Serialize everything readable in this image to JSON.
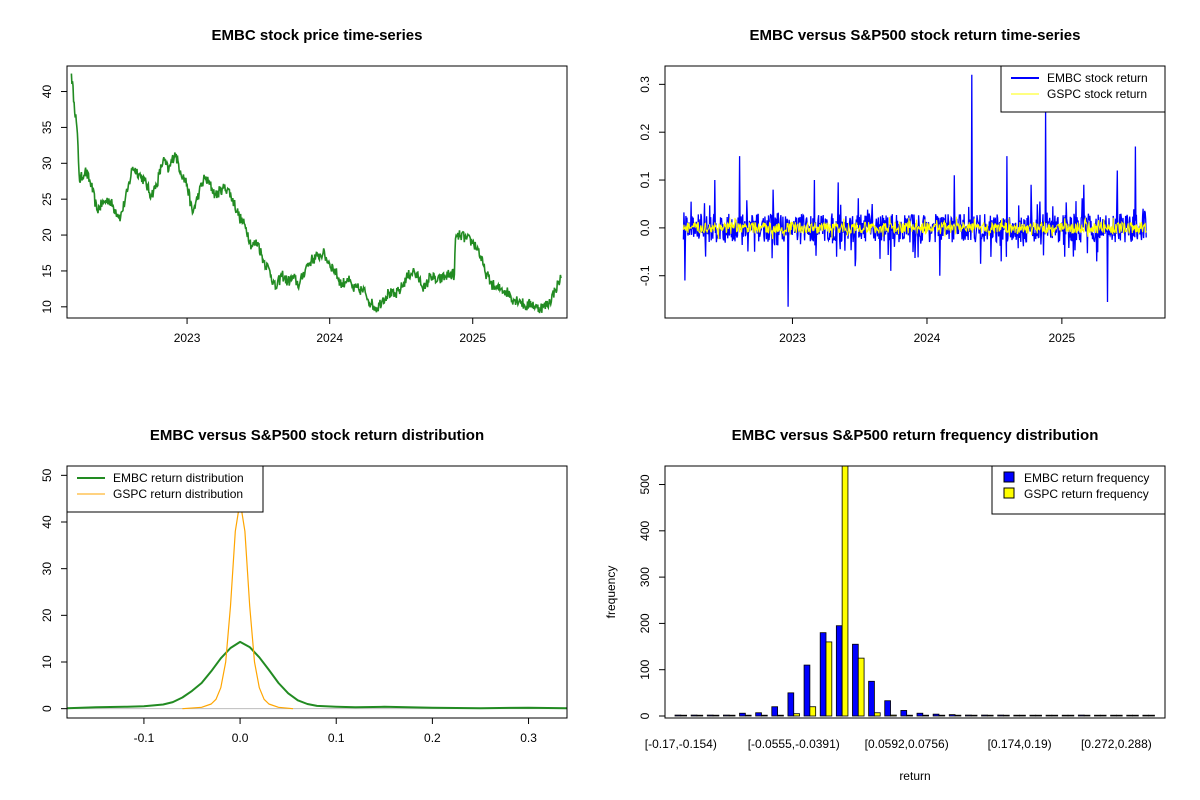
{
  "chart_data": [
    {
      "type": "line",
      "title": "EMBC stock price time-series",
      "xlabel": "",
      "ylabel": "",
      "x_ticks": [
        "2023",
        "2024",
        "2025"
      ],
      "x_tick_values": [
        "2023-01-01",
        "2024-01-01",
        "2025-01-01"
      ],
      "xlim": [
        "2022-03-10",
        "2025-08-20"
      ],
      "y_ticks": [
        10,
        15,
        20,
        25,
        30,
        35,
        40
      ],
      "ylim": [
        9,
        43
      ],
      "grid": false,
      "series": [
        {
          "color": "#228b22",
          "points": [
            [
              "2022-03-11",
              42.5
            ],
            [
              "2022-03-18",
              38.5
            ],
            [
              "2022-03-25",
              35.0
            ],
            [
              "2022-04-01",
              27.5
            ],
            [
              "2022-04-15",
              29.0
            ],
            [
              "2022-05-01",
              27.0
            ],
            [
              "2022-05-15",
              23.5
            ],
            [
              "2022-06-01",
              24.5
            ],
            [
              "2022-06-15",
              25.0
            ],
            [
              "2022-07-01",
              23.5
            ],
            [
              "2022-07-15",
              22.5
            ],
            [
              "2022-08-01",
              26.0
            ],
            [
              "2022-08-15",
              29.5
            ],
            [
              "2022-09-01",
              28.5
            ],
            [
              "2022-09-15",
              27.5
            ],
            [
              "2022-10-01",
              25.5
            ],
            [
              "2022-10-15",
              27.0
            ],
            [
              "2022-11-01",
              30.5
            ],
            [
              "2022-11-15",
              29.0
            ],
            [
              "2022-12-01",
              31.5
            ],
            [
              "2022-12-15",
              29.0
            ],
            [
              "2023-01-01",
              27.0
            ],
            [
              "2023-01-15",
              23.0
            ],
            [
              "2023-02-01",
              26.0
            ],
            [
              "2023-02-15",
              28.0
            ],
            [
              "2023-03-01",
              27.0
            ],
            [
              "2023-03-15",
              25.5
            ],
            [
              "2023-04-01",
              26.5
            ],
            [
              "2023-04-15",
              26.5
            ],
            [
              "2023-05-01",
              24.5
            ],
            [
              "2023-05-15",
              22.5
            ],
            [
              "2023-06-01",
              21.0
            ],
            [
              "2023-06-15",
              18.5
            ],
            [
              "2023-07-01",
              19.0
            ],
            [
              "2023-07-15",
              16.5
            ],
            [
              "2023-08-01",
              15.0
            ],
            [
              "2023-08-15",
              12.5
            ],
            [
              "2023-09-01",
              14.5
            ],
            [
              "2023-09-15",
              13.5
            ],
            [
              "2023-10-01",
              14.0
            ],
            [
              "2023-10-15",
              13.0
            ],
            [
              "2023-11-01",
              15.5
            ],
            [
              "2023-11-15",
              16.5
            ],
            [
              "2023-12-01",
              17.0
            ],
            [
              "2023-12-15",
              17.5
            ],
            [
              "2024-01-01",
              16.0
            ],
            [
              "2024-01-15",
              15.0
            ],
            [
              "2024-02-01",
              13.0
            ],
            [
              "2024-02-15",
              14.0
            ],
            [
              "2024-03-01",
              12.5
            ],
            [
              "2024-03-15",
              12.5
            ],
            [
              "2024-04-01",
              12.0
            ],
            [
              "2024-04-15",
              10.5
            ],
            [
              "2024-05-01",
              9.8
            ],
            [
              "2024-05-15",
              11.0
            ],
            [
              "2024-06-01",
              12.0
            ],
            [
              "2024-06-15",
              11.5
            ],
            [
              "2024-07-01",
              12.5
            ],
            [
              "2024-07-15",
              14.0
            ],
            [
              "2024-08-01",
              15.0
            ],
            [
              "2024-08-15",
              14.0
            ],
            [
              "2024-09-01",
              12.5
            ],
            [
              "2024-09-15",
              14.5
            ],
            [
              "2024-10-01",
              13.5
            ],
            [
              "2024-10-15",
              14.0
            ],
            [
              "2024-11-01",
              14.5
            ],
            [
              "2024-11-15",
              14.5
            ],
            [
              "2024-11-18",
              19.5
            ],
            [
              "2024-12-01",
              20.0
            ],
            [
              "2024-12-15",
              19.5
            ],
            [
              "2025-01-01",
              19.0
            ],
            [
              "2025-01-15",
              18.0
            ],
            [
              "2025-02-01",
              15.0
            ],
            [
              "2025-02-15",
              13.5
            ],
            [
              "2025-03-01",
              12.5
            ],
            [
              "2025-03-15",
              12.5
            ],
            [
              "2025-04-01",
              12.0
            ],
            [
              "2025-04-15",
              11.0
            ],
            [
              "2025-05-01",
              11.0
            ],
            [
              "2025-05-15",
              10.0
            ],
            [
              "2025-06-01",
              10.5
            ],
            [
              "2025-06-15",
              9.8
            ],
            [
              "2025-07-01",
              10.0
            ],
            [
              "2025-07-15",
              10.5
            ],
            [
              "2025-08-01",
              12.5
            ],
            [
              "2025-08-15",
              14.0
            ]
          ]
        }
      ]
    },
    {
      "type": "line",
      "title": "EMBC versus S&P500 stock return time-series",
      "xlabel": "",
      "ylabel": "",
      "x_ticks": [
        "2023",
        "2024",
        "2025"
      ],
      "x_tick_values": [
        "2023-01-01",
        "2024-01-01",
        "2025-01-01"
      ],
      "xlim": [
        "2022-03-10",
        "2025-08-20"
      ],
      "y_ticks": [
        -0.1,
        0.0,
        0.1,
        0.2,
        0.3
      ],
      "y_tick_labels": [
        "-0.1",
        "0.0",
        "0.1",
        "0.2",
        "0.3"
      ],
      "ylim": [
        -0.18,
        0.33
      ],
      "legend": "top-right",
      "grid": false,
      "series": [
        {
          "name": "EMBC stock return",
          "color": "#0000ff",
          "amplitude": 0.03,
          "spikes": [
            [
              "2022-03-15",
              -0.11
            ],
            [
              "2022-04-01",
              0.055
            ],
            [
              "2022-05-10",
              -0.06
            ],
            [
              "2022-06-05",
              0.1
            ],
            [
              "2022-08-10",
              0.15
            ],
            [
              "2022-09-20",
              -0.05
            ],
            [
              "2022-11-10",
              0.08
            ],
            [
              "2022-12-20",
              -0.165
            ],
            [
              "2023-03-01",
              0.1
            ],
            [
              "2023-05-05",
              0.095
            ],
            [
              "2023-06-20",
              -0.08
            ],
            [
              "2023-08-05",
              0.05
            ],
            [
              "2023-09-25",
              -0.09
            ],
            [
              "2024-02-05",
              -0.1
            ],
            [
              "2024-03-15",
              0.11
            ],
            [
              "2024-05-01",
              0.32
            ],
            [
              "2024-05-25",
              -0.075
            ],
            [
              "2024-07-20",
              -0.07
            ],
            [
              "2024-08-05",
              0.15
            ],
            [
              "2024-10-10",
              0.09
            ],
            [
              "2024-11-18",
              0.245
            ],
            [
              "2025-02-01",
              -0.06
            ],
            [
              "2025-03-01",
              0.09
            ],
            [
              "2025-04-05",
              -0.07
            ],
            [
              "2025-05-05",
              -0.155
            ],
            [
              "2025-06-01",
              0.12
            ],
            [
              "2025-07-20",
              0.17
            ],
            [
              "2025-08-10",
              0.04
            ]
          ]
        },
        {
          "name": "GSPC stock return",
          "color": "#ffff00",
          "amplitude": 0.012
        }
      ]
    },
    {
      "type": "line",
      "title": "EMBC versus S&P500 stock return distribution",
      "xlabel": "",
      "ylabel": "",
      "x_ticks": [
        -0.1,
        0.0,
        0.1,
        0.2,
        0.3
      ],
      "x_tick_labels": [
        "-0.1",
        "0.0",
        "0.1",
        "0.2",
        "0.3"
      ],
      "y_ticks": [
        0,
        10,
        20,
        30,
        40,
        50
      ],
      "xlim": [
        -0.18,
        0.34
      ],
      "ylim": [
        -2,
        52
      ],
      "legend": "top-left",
      "grid": false,
      "series": [
        {
          "name": "EMBC return distribution",
          "color": "#228b22",
          "x": [
            -0.18,
            -0.15,
            -0.12,
            -0.1,
            -0.08,
            -0.07,
            -0.06,
            -0.05,
            -0.04,
            -0.03,
            -0.02,
            -0.01,
            0.0,
            0.01,
            0.02,
            0.03,
            0.04,
            0.05,
            0.06,
            0.07,
            0.08,
            0.1,
            0.12,
            0.15,
            0.2,
            0.25,
            0.3,
            0.34
          ],
          "y": [
            0.1,
            0.3,
            0.4,
            0.5,
            0.9,
            1.4,
            2.4,
            3.8,
            5.5,
            8.0,
            10.8,
            13.0,
            14.3,
            13.2,
            11.0,
            8.3,
            5.5,
            3.3,
            1.8,
            1.0,
            0.6,
            0.4,
            0.3,
            0.4,
            0.2,
            0.1,
            0.2,
            0.1
          ]
        },
        {
          "name": "GSPC return distribution",
          "color": "#ffa500",
          "x": [
            -0.06,
            -0.04,
            -0.03,
            -0.025,
            -0.02,
            -0.015,
            -0.01,
            -0.005,
            0.0,
            0.005,
            0.01,
            0.015,
            0.02,
            0.025,
            0.03,
            0.04,
            0.055
          ],
          "y": [
            0,
            0.3,
            1.0,
            2.0,
            4.5,
            10.0,
            22.0,
            38.0,
            44.5,
            38.0,
            22.0,
            10.0,
            4.5,
            2.0,
            1.0,
            0.3,
            0
          ]
        }
      ]
    },
    {
      "type": "bar",
      "title": "EMBC versus S&P500 return frequency distribution",
      "xlabel": "return",
      "ylabel": "frequency",
      "y_ticks": [
        0,
        100,
        200,
        300,
        400,
        500
      ],
      "ylim": [
        0,
        540
      ],
      "legend": "top-right",
      "grid": false,
      "x_tick_labels": [
        {
          "bin": 0,
          "label": "[-0.17,-0.154)"
        },
        {
          "bin": 7,
          "label": "[-0.0555,-0.0391)"
        },
        {
          "bin": 14,
          "label": "[0.0592,0.0756)"
        },
        {
          "bin": 21,
          "label": "[0.174,0.19)"
        },
        {
          "bin": 27,
          "label": "[0.272,0.288)"
        }
      ],
      "series": [
        {
          "name": "EMBC return frequency",
          "color": "#0000ff",
          "values": [
            2,
            2,
            2,
            2,
            6,
            7,
            20,
            50,
            110,
            180,
            195,
            155,
            75,
            33,
            12,
            6,
            4,
            3,
            2,
            2,
            2,
            1,
            1,
            1,
            1,
            2,
            1,
            1,
            1,
            1
          ]
        },
        {
          "name": "GSPC return frequency",
          "color": "#ffff00",
          "values": [
            0,
            0,
            0,
            0,
            0,
            0,
            0,
            5,
            20,
            160,
            560,
            125,
            7,
            2,
            0,
            0,
            0,
            0,
            0,
            0,
            0,
            0,
            0,
            0,
            0,
            0,
            0,
            0,
            0,
            0
          ]
        }
      ]
    }
  ]
}
